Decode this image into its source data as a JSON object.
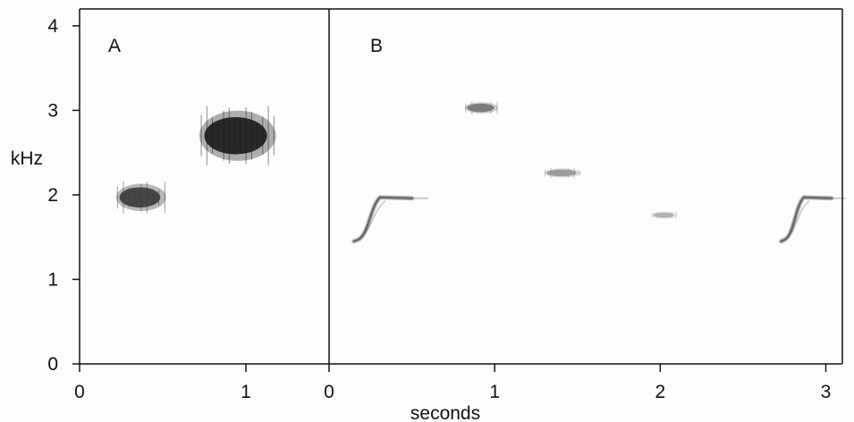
{
  "chart_data": {
    "type": "heatmap",
    "ylabel": "kHz",
    "xlabel": "seconds",
    "ylim": [
      0,
      4.2
    ],
    "y_ticks": [
      "0",
      "1",
      "2",
      "3",
      "4"
    ],
    "grid": false,
    "colors": {
      "ink": "#111111",
      "mark": "#1a1a1a",
      "background": "#fdfdfd"
    },
    "panels": [
      {
        "label": "A",
        "xlim": [
          0,
          1.5
        ],
        "x_ticks": [
          "0",
          "1"
        ],
        "notes": [
          {
            "t_start": 0.22,
            "t_end": 0.52,
            "f_center": 1.97,
            "f_spread": 0.12,
            "intensity": 0.85,
            "shape": "flat"
          },
          {
            "t_start": 0.72,
            "t_end": 1.18,
            "f_center": 2.7,
            "f_spread": 0.22,
            "intensity": 1.0,
            "shape": "flat"
          }
        ]
      },
      {
        "label": "B",
        "xlim": [
          0,
          3.1
        ],
        "x_ticks": [
          "0",
          "1",
          "2",
          "3"
        ],
        "notes": [
          {
            "t_start": 0.15,
            "t_end": 0.6,
            "f_low": 1.45,
            "f_high": 1.97,
            "intensity": 0.7,
            "shape": "upsweep"
          },
          {
            "t_start": 0.82,
            "t_end": 1.02,
            "f_center": 3.03,
            "f_spread": 0.05,
            "intensity": 0.6,
            "shape": "flat"
          },
          {
            "t_start": 1.3,
            "t_end": 1.52,
            "f_center": 2.26,
            "f_spread": 0.04,
            "intensity": 0.45,
            "shape": "flat"
          },
          {
            "t_start": 1.95,
            "t_end": 2.1,
            "f_center": 1.76,
            "f_spread": 0.03,
            "intensity": 0.35,
            "shape": "flat"
          },
          {
            "t_start": 2.73,
            "t_end": 3.12,
            "f_low": 1.45,
            "f_high": 1.97,
            "intensity": 0.7,
            "shape": "upsweep"
          }
        ]
      }
    ]
  }
}
